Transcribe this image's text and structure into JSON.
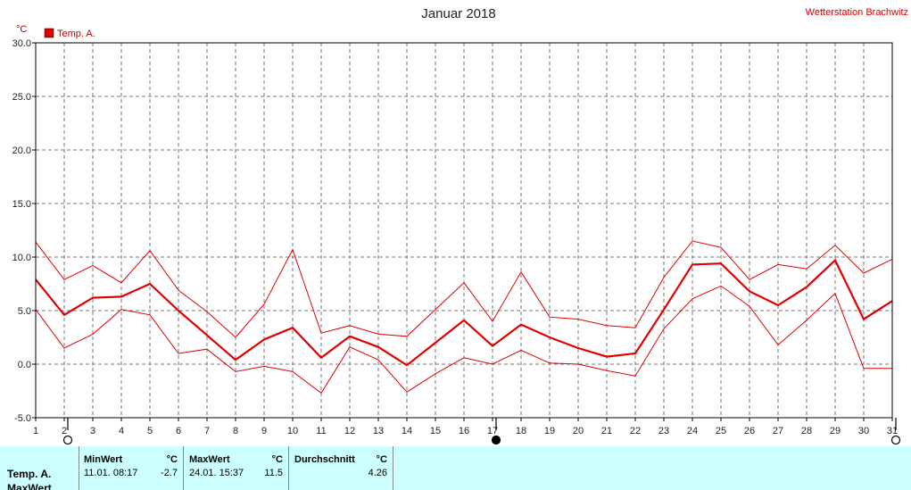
{
  "title": "Januar 2018",
  "station": "Wetterstation Brachwitz",
  "legend": {
    "label": "Temp. A.",
    "color": "#e00000"
  },
  "chart_data": {
    "type": "line",
    "unit": "°C",
    "ylim": [
      -5.0,
      30.0
    ],
    "yticks": [
      "30.0",
      "25.0",
      "20.0",
      "15.0",
      "10.0",
      "5.0",
      "0.0",
      "-5.0"
    ],
    "ytick_values": [
      30,
      25,
      20,
      15,
      10,
      5,
      0,
      -5
    ],
    "x": [
      1,
      2,
      3,
      4,
      5,
      6,
      7,
      8,
      9,
      10,
      11,
      12,
      13,
      14,
      15,
      16,
      17,
      18,
      19,
      20,
      21,
      22,
      23,
      24,
      25,
      26,
      27,
      28,
      29,
      30,
      31
    ],
    "grid": true,
    "legend_position": "top-left",
    "series": [
      {
        "name": "Temp. A.",
        "role": "mean",
        "color": "#e00000",
        "values": [
          7.9,
          4.6,
          6.2,
          6.3,
          7.5,
          5.0,
          2.7,
          0.4,
          2.3,
          3.4,
          0.6,
          2.6,
          1.6,
          -0.1,
          2.0,
          4.1,
          1.7,
          3.7,
          2.5,
          1.5,
          0.7,
          1.0,
          5.1,
          9.3,
          9.4,
          6.8,
          5.5,
          7.2,
          9.7,
          4.2,
          5.9
        ]
      },
      {
        "role": "max",
        "color": "#e00000",
        "values": [
          11.4,
          7.9,
          9.2,
          7.6,
          10.6,
          6.9,
          4.9,
          2.5,
          5.6,
          10.7,
          2.9,
          3.6,
          2.8,
          2.6,
          5.1,
          7.6,
          4.0,
          8.6,
          4.4,
          4.2,
          3.6,
          3.4,
          8.1,
          11.5,
          10.9,
          7.9,
          9.3,
          8.9,
          11.1,
          8.5,
          9.8
        ]
      },
      {
        "role": "min",
        "color": "#e00000",
        "values": [
          5.1,
          1.5,
          2.8,
          5.1,
          4.6,
          1.0,
          1.4,
          -0.7,
          -0.2,
          -0.7,
          -2.7,
          1.6,
          0.4,
          -2.6,
          -0.9,
          0.6,
          0.0,
          1.3,
          0.1,
          0.0,
          -0.6,
          -1.1,
          3.3,
          6.1,
          7.3,
          5.4,
          1.8,
          4.1,
          6.6,
          -0.4,
          -0.4
        ]
      }
    ],
    "moon_phases": [
      {
        "day": 2,
        "phase": "full"
      },
      {
        "day": 17,
        "phase": "new"
      },
      {
        "day": 31,
        "phase": "full"
      }
    ]
  },
  "stats": {
    "row_label": "Temp. A.",
    "row_label_2": "MaxWert",
    "min_header": "MinWert",
    "min_unit": "°C",
    "min_when": "11.01.  08:17",
    "min_value": "-2.7",
    "max_header": "MaxWert",
    "max_unit": "°C",
    "max_when": "24.01.  15:37",
    "max_value": "11.5",
    "avg_header": "Durchschnitt",
    "avg_unit": "°C",
    "avg_value": "4.26"
  }
}
